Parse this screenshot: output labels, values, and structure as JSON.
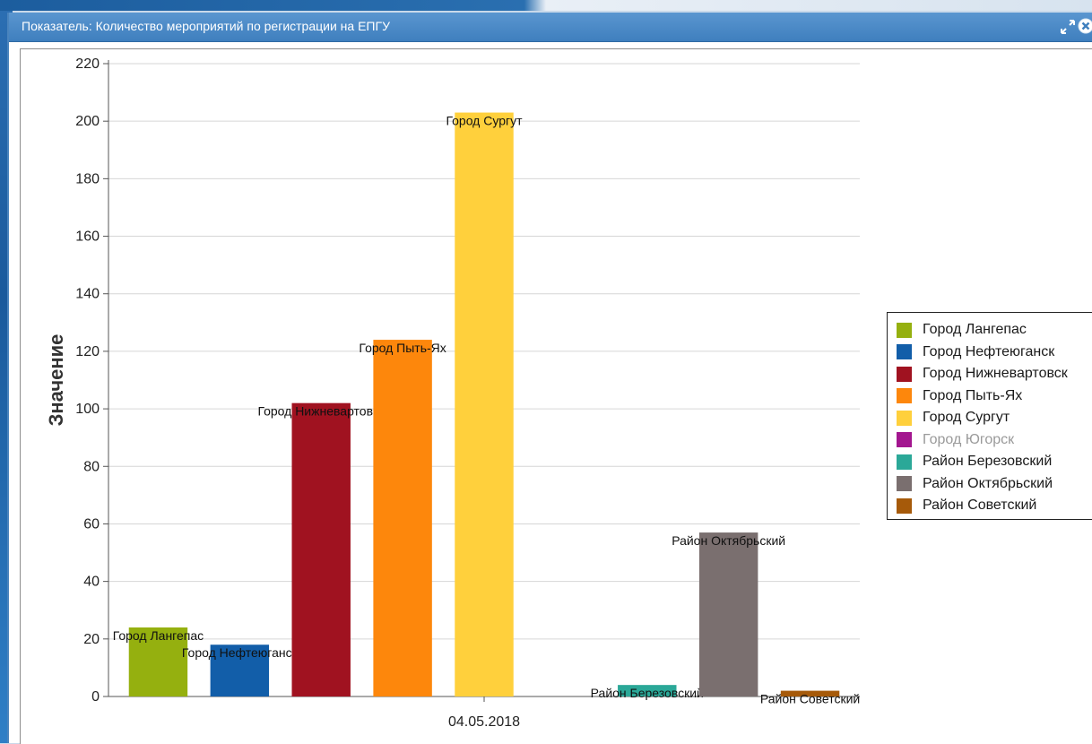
{
  "window": {
    "title": "Показатель: Количество мероприятий по регистрации на ЕПГУ"
  },
  "colors": {
    "titlebar": "#4a8ac7",
    "grid": "#d6d6d6",
    "axis": "#555555"
  },
  "chart_data": {
    "type": "bar",
    "title": "",
    "xlabel": "",
    "ylabel": "Значение",
    "ylim": [
      0,
      220
    ],
    "yticks": [
      0,
      20,
      40,
      60,
      80,
      100,
      120,
      140,
      160,
      180,
      200,
      220
    ],
    "categories": [
      "04.05.2018"
    ],
    "grid": true,
    "legend_position": "right",
    "series": [
      {
        "name": "Город Лангепас",
        "values": [
          24
        ],
        "color": "#95b00f",
        "visible": true
      },
      {
        "name": "Город Нефтеюганск",
        "values": [
          18
        ],
        "color": "#125ea9",
        "visible": true
      },
      {
        "name": "Город Нижневартовск",
        "values": [
          102
        ],
        "color": "#a01220",
        "visible": true
      },
      {
        "name": "Город Пыть-Ях",
        "values": [
          124
        ],
        "color": "#fd870c",
        "visible": true
      },
      {
        "name": "Город Сургут",
        "values": [
          203
        ],
        "color": "#ffd03c",
        "visible": true
      },
      {
        "name": "Город Югорск",
        "values": [
          null
        ],
        "color": "#a3168f",
        "visible": false
      },
      {
        "name": "Район Березовский",
        "values": [
          4
        ],
        "color": "#2ba898",
        "visible": true
      },
      {
        "name": "Район Октябрьский",
        "values": [
          57
        ],
        "color": "#7a6f6f",
        "visible": true
      },
      {
        "name": "Район Советский",
        "values": [
          2
        ],
        "color": "#a65a0a",
        "visible": true
      }
    ]
  }
}
